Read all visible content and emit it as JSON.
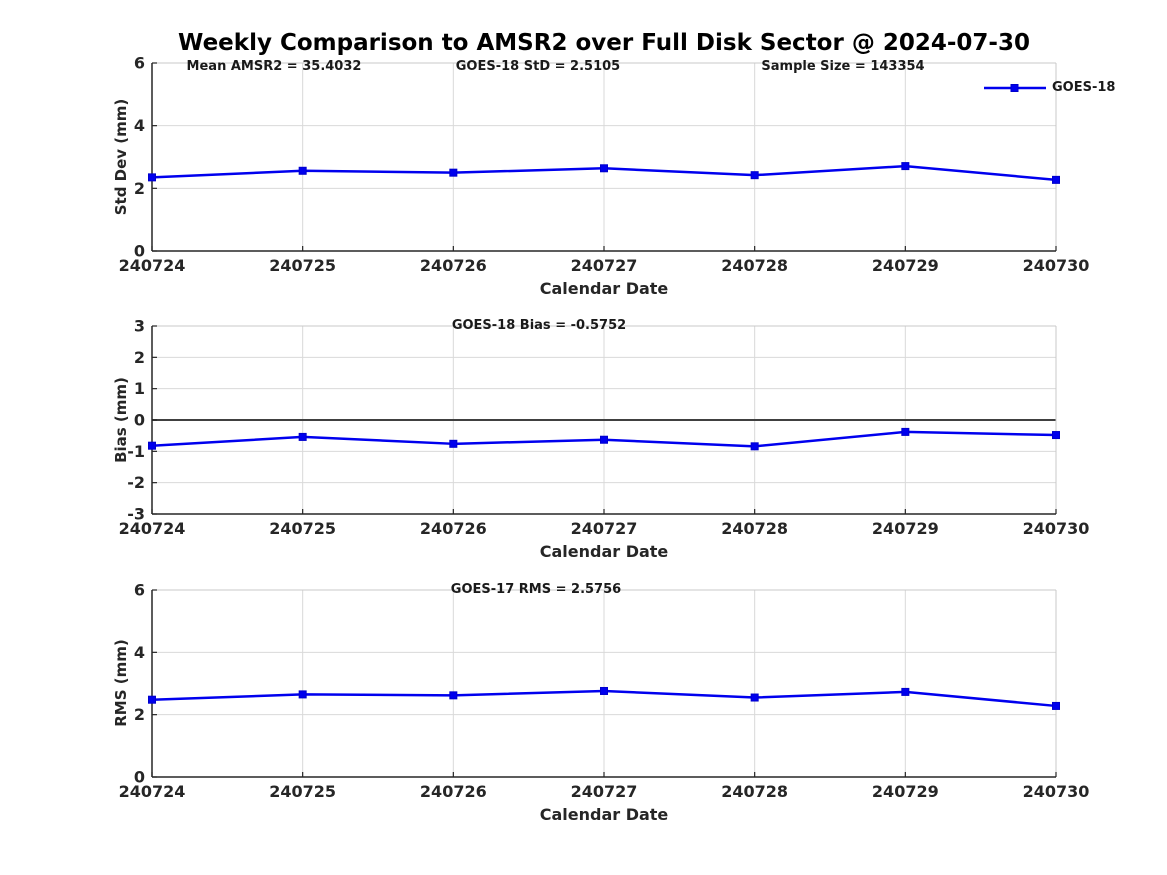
{
  "title": "Weekly Comparison to AMSR2 over Full Disk Sector @ 2024-07-30",
  "legend": {
    "label": "GOES-18"
  },
  "colors": {
    "line": "#0000EE",
    "marker": "#0000EE",
    "text": "#262626",
    "grid": "#d9d9d9",
    "spine_dark": "#262626",
    "spine_light": "#c8c8c8",
    "zero_line": "#404040"
  },
  "chart_data": [
    {
      "type": "line",
      "title": "",
      "ylabel": "Std Dev (mm)",
      "xlabel": "Calendar Date",
      "categories": [
        "240724",
        "240725",
        "240726",
        "240727",
        "240728",
        "240729",
        "240730"
      ],
      "series": [
        {
          "name": "GOES-18",
          "values": [
            2.35,
            2.56,
            2.5,
            2.64,
            2.42,
            2.71,
            2.27
          ]
        }
      ],
      "ylim": [
        0,
        6
      ],
      "yticks": [
        0,
        2,
        4,
        6
      ],
      "grid": true,
      "zero_line": false,
      "legend_position": "top-right-outside",
      "annotations": [
        {
          "text": "Mean AMSR2 = 35.4032"
        },
        {
          "text": "GOES-18 StD = 2.5105"
        },
        {
          "text": "Sample Size = 143354"
        }
      ]
    },
    {
      "type": "line",
      "title": "",
      "ylabel": "Bias (mm)",
      "xlabel": "Calendar Date",
      "categories": [
        "240724",
        "240725",
        "240726",
        "240727",
        "240728",
        "240729",
        "240730"
      ],
      "series": [
        {
          "name": "GOES-18",
          "values": [
            -0.82,
            -0.54,
            -0.76,
            -0.63,
            -0.84,
            -0.38,
            -0.48
          ]
        }
      ],
      "ylim": [
        -3,
        3
      ],
      "yticks": [
        -3,
        -2,
        -1,
        0,
        1,
        2,
        3
      ],
      "grid": true,
      "zero_line": true,
      "annotations": [
        {
          "text": "GOES-18 Bias  = -0.5752"
        }
      ]
    },
    {
      "type": "line",
      "title": "",
      "ylabel": "RMS (mm)",
      "xlabel": "Calendar Date",
      "categories": [
        "240724",
        "240725",
        "240726",
        "240727",
        "240728",
        "240729",
        "240730"
      ],
      "series": [
        {
          "name": "GOES-18",
          "values": [
            2.48,
            2.65,
            2.62,
            2.76,
            2.55,
            2.73,
            2.28
          ]
        }
      ],
      "ylim": [
        0,
        6
      ],
      "yticks": [
        0,
        2,
        4,
        6
      ],
      "grid": true,
      "zero_line": false,
      "annotations": [
        {
          "text": "GOES-17 RMS = 2.5756"
        }
      ]
    }
  ]
}
